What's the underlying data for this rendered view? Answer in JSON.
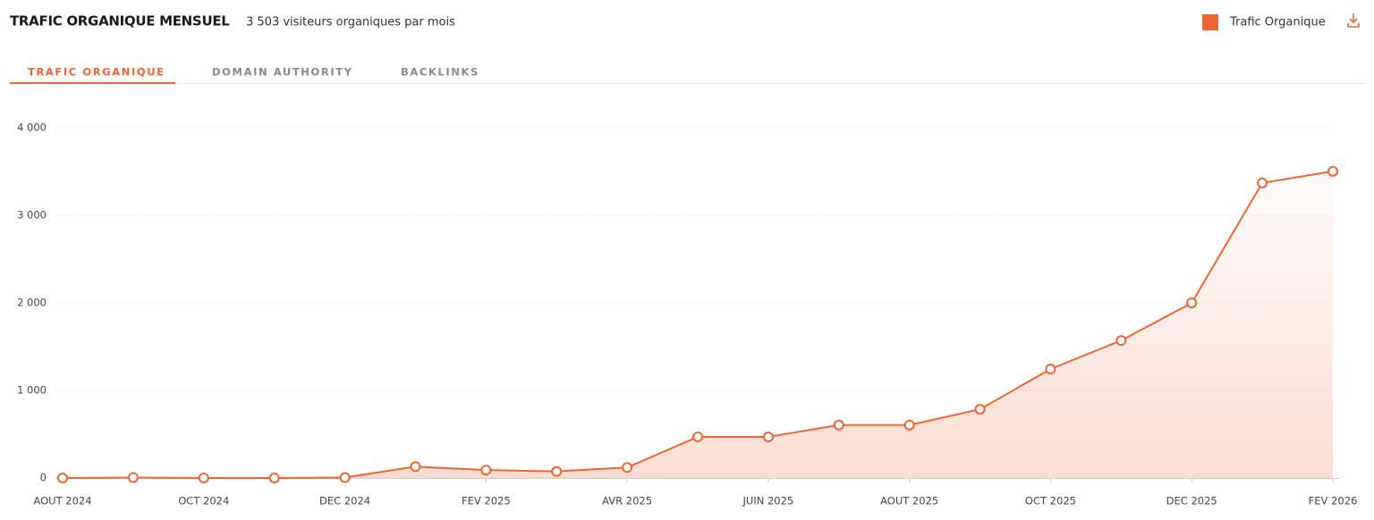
{
  "tabs": [
    "TRAFIC ORGANIQUE",
    "DOMAIN AUTHORITY",
    "BACKLINKS"
  ],
  "chart_data": {
    "type": "line",
    "title": "TRAFIC ORGANIQUE MENSUEL",
    "subtitle": "3 503 visiteurs organiques par mois",
    "categories": [
      "AOUT 2024",
      null,
      "OCT 2024",
      null,
      "DEC 2024",
      null,
      "FEV 2025",
      null,
      "AVR 2025",
      null,
      "JUIN 2025",
      null,
      "AOUT 2025",
      null,
      "OCT 2025",
      null,
      "DEC 2025",
      null,
      "FEV 2026"
    ],
    "series": [
      {
        "name": "Trafic Organique",
        "color": "#ee6535",
        "values": [
          0,
          5,
          0,
          0,
          5,
          130,
          90,
          75,
          120,
          470,
          470,
          605,
          605,
          785,
          1245,
          1570,
          2000,
          3370,
          3503
        ]
      }
    ],
    "ylim": [
      0,
      4000
    ],
    "yticks": [
      0,
      {
        "value": 1000,
        "label": "1 000"
      },
      {
        "value": 2000,
        "label": "2 000"
      },
      {
        "value": 3000,
        "label": "3 000"
      },
      {
        "value": 4000,
        "label": "4 000"
      }
    ],
    "grid": true,
    "legend": "top-right"
  }
}
